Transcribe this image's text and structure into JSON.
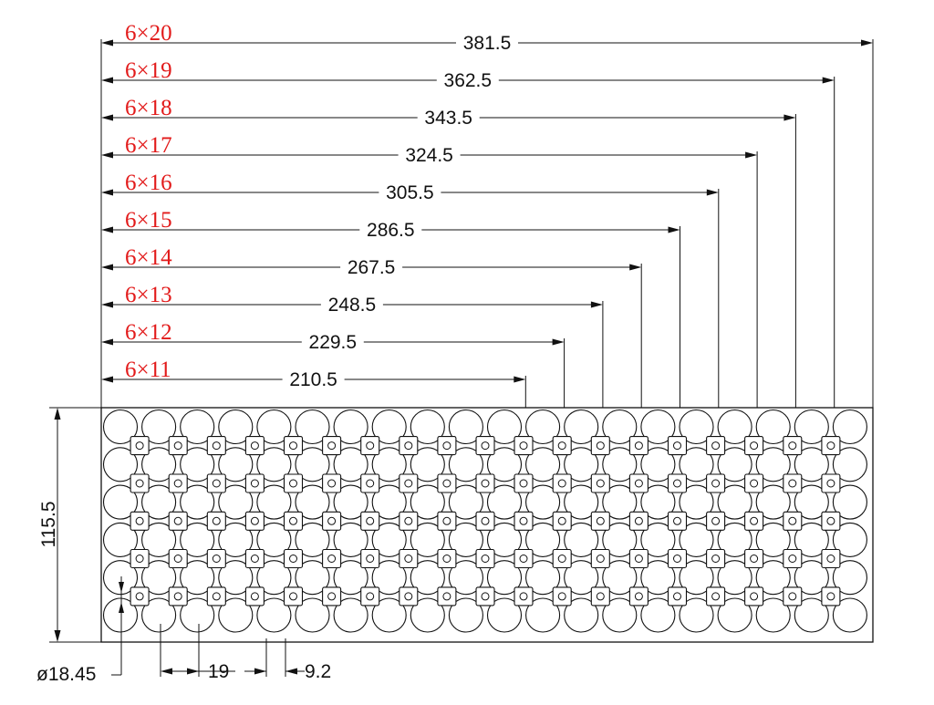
{
  "colors": {
    "label_red": "#e21a1a",
    "line": "#111111",
    "background": "#ffffff"
  },
  "grid": {
    "rows": 6,
    "columns": 20
  },
  "configurations": [
    {
      "label": "6×20",
      "length": "381.5",
      "columns": 20
    },
    {
      "label": "6×19",
      "length": "362.5",
      "columns": 19
    },
    {
      "label": "6×18",
      "length": "343.5",
      "columns": 18
    },
    {
      "label": "6×17",
      "length": "324.5",
      "columns": 17
    },
    {
      "label": "6×16",
      "length": "305.5",
      "columns": 16
    },
    {
      "label": "6×15",
      "length": "286.5",
      "columns": 15
    },
    {
      "label": "6×14",
      "length": "267.5",
      "columns": 14
    },
    {
      "label": "6×13",
      "length": "248.5",
      "columns": 13
    },
    {
      "label": "6×12",
      "length": "229.5",
      "columns": 12
    },
    {
      "label": "6×11",
      "length": "210.5",
      "columns": 11
    }
  ],
  "dimensions": {
    "height": "115.5",
    "diameter": "ø18.45",
    "pitch": "19",
    "gap": "9.2"
  }
}
